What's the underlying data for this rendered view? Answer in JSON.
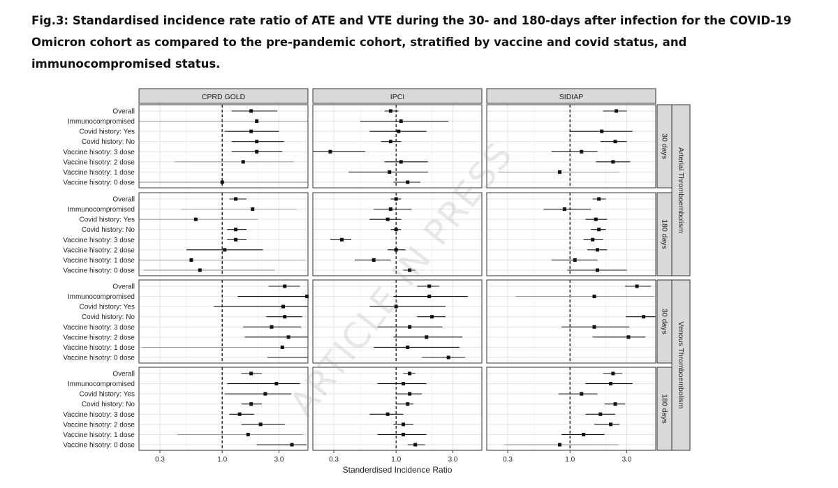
{
  "title": "Fig.3: Standardised incidence rate ratio of ATE and VTE during the 30- and 180-days after infection for the COVID-19 Omicron cohort as compared to the pre-pandemic cohort, stratified by vaccine and covid status, and immunocompromised status.",
  "watermark": "ARTICLE IN PRESS",
  "chart_data": {
    "type": "forest",
    "xlabel": "Standerdised Incidence Ratio",
    "x_scale": "log",
    "xlim": [
      0.2,
      5.25
    ],
    "x_ticks": [
      0.3,
      1.0,
      3.0
    ],
    "x_tick_labels": [
      "0.3",
      "1.0",
      "3.0"
    ],
    "reference_line": 1.0,
    "columns": [
      "CPRD GOLD",
      "IPCI",
      "SIDIAP"
    ],
    "outcomes": [
      "Arterial Thromboembolism",
      "Venous Thromboembolism"
    ],
    "windows": [
      "30 days",
      "180 days"
    ],
    "categories": [
      "Overall",
      "Immunocompromised",
      "Covid history: Yes",
      "Covid history: No",
      "Vaccine hisotry: 3 dose",
      "Vaccine hisotry: 2 dose",
      "Vaccine hisotry: 1 dose",
      "Vaccine hisotry: 0 dose"
    ],
    "panels": [
      {
        "outcome": "Arterial Thromboembolism",
        "window": "30 days",
        "series": [
          {
            "source": "CPRD GOLD",
            "est": [
              1.75,
              1.95,
              1.75,
              1.95,
              1.95,
              1.5,
              null,
              1.0
            ],
            "lo": [
              1.2,
              0.2,
              1.05,
              1.2,
              1.2,
              0.4,
              null,
              0.2
            ],
            "hi": [
              2.9,
              5.25,
              3.0,
              3.3,
              3.2,
              4.0,
              null,
              5.25
            ]
          },
          {
            "source": "IPCI",
            "est": [
              0.9,
              1.1,
              1.05,
              0.9,
              0.28,
              1.1,
              0.88,
              1.25
            ],
            "lo": [
              0.8,
              0.5,
              0.6,
              0.75,
              0.2,
              0.8,
              0.4,
              0.95
            ],
            "hi": [
              1.05,
              2.75,
              1.8,
              1.1,
              0.55,
              1.85,
              1.85,
              1.6
            ]
          },
          {
            "source": "SIDIAP",
            "est": [
              2.45,
              null,
              1.85,
              2.4,
              1.25,
              2.3,
              0.82,
              null
            ],
            "lo": [
              1.9,
              null,
              1.0,
              1.8,
              0.7,
              1.65,
              0.25,
              null
            ],
            "hi": [
              3.0,
              null,
              3.35,
              3.0,
              1.7,
              3.2,
              2.6,
              null
            ]
          }
        ]
      },
      {
        "outcome": "Arterial Thromboembolism",
        "window": "180 days",
        "series": [
          {
            "source": "CPRD GOLD",
            "est": [
              1.3,
              1.8,
              0.6,
              1.3,
              1.3,
              1.05,
              0.55,
              0.65
            ],
            "lo": [
              1.15,
              0.45,
              0.2,
              1.1,
              1.1,
              0.5,
              0.2,
              0.22
            ],
            "hi": [
              1.6,
              4.2,
              2.0,
              1.6,
              1.6,
              2.2,
              5.0,
              2.75
            ]
          },
          {
            "source": "IPCI",
            "est": [
              1.0,
              0.9,
              0.85,
              1.0,
              0.35,
              1.0,
              0.65,
              1.3
            ],
            "lo": [
              0.9,
              0.65,
              0.6,
              0.9,
              0.28,
              0.85,
              0.45,
              1.15
            ],
            "hi": [
              1.1,
              1.35,
              1.1,
              1.1,
              0.42,
              1.2,
              0.9,
              1.45
            ]
          },
          {
            "source": "SIDIAP",
            "est": [
              1.75,
              0.9,
              1.65,
              1.75,
              1.55,
              1.7,
              1.1,
              1.7
            ],
            "lo": [
              1.55,
              0.6,
              1.35,
              1.5,
              1.3,
              1.4,
              0.7,
              0.95
            ],
            "hi": [
              2.0,
              1.5,
              2.05,
              2.0,
              1.9,
              2.05,
              1.7,
              3.0
            ]
          }
        ]
      },
      {
        "outcome": "Venous Thromboembolism",
        "window": "30 days",
        "series": [
          {
            "source": "CPRD GOLD",
            "est": [
              3.35,
              5.15,
              3.25,
              3.35,
              2.6,
              3.6,
              3.2,
              null
            ],
            "lo": [
              2.45,
              1.35,
              0.85,
              2.35,
              1.5,
              1.55,
              0.21,
              2.4
            ],
            "hi": [
              4.5,
              5.25,
              5.25,
              4.7,
              4.6,
              5.25,
              5.25,
              5.25
            ]
          },
          {
            "source": "IPCI",
            "est": [
              1.9,
              1.9,
              1.0,
              2.0,
              1.3,
              1.8,
              1.25,
              2.75
            ],
            "lo": [
              1.5,
              0.95,
              0.6,
              1.5,
              0.7,
              0.95,
              0.65,
              1.65
            ],
            "hi": [
              2.3,
              4.0,
              2.6,
              2.6,
              2.45,
              3.6,
              3.4,
              3.8
            ]
          },
          {
            "source": "SIDIAP",
            "est": [
              3.65,
              1.6,
              null,
              4.15,
              1.6,
              3.1,
              null,
              null
            ],
            "lo": [
              2.9,
              0.35,
              null,
              2.95,
              0.85,
              1.55,
              null,
              null
            ],
            "hi": [
              4.8,
              5.1,
              null,
              5.2,
              3.15,
              4.3,
              null,
              null
            ]
          }
        ]
      },
      {
        "outcome": "Venous Thromboembolism",
        "window": "180 days",
        "series": [
          {
            "source": "CPRD GOLD",
            "est": [
              1.75,
              2.85,
              2.3,
              1.75,
              1.4,
              2.1,
              1.65,
              3.85
            ],
            "lo": [
              1.45,
              1.1,
              1.05,
              1.45,
              1.15,
              1.45,
              0.42,
              1.95
            ],
            "hi": [
              2.15,
              4.5,
              3.8,
              2.15,
              1.85,
              3.35,
              4.8,
              5.1
            ]
          },
          {
            "source": "IPCI",
            "est": [
              1.3,
              1.15,
              1.3,
              1.25,
              0.85,
              1.15,
              1.15,
              1.45
            ],
            "lo": [
              1.15,
              0.7,
              1.0,
              1.0,
              0.6,
              0.95,
              0.7,
              1.25
            ],
            "hi": [
              1.45,
              1.8,
              1.65,
              1.4,
              1.15,
              1.4,
              1.8,
              1.75
            ]
          },
          {
            "source": "SIDIAP",
            "est": [
              2.3,
              2.2,
              1.25,
              2.4,
              1.8,
              2.2,
              1.3,
              0.82
            ],
            "lo": [
              1.9,
              1.35,
              0.8,
              1.95,
              1.35,
              1.6,
              0.85,
              0.28
            ],
            "hi": [
              2.75,
              3.35,
              1.7,
              2.9,
              2.4,
              2.6,
              1.95,
              2.55
            ]
          }
        ]
      }
    ]
  }
}
